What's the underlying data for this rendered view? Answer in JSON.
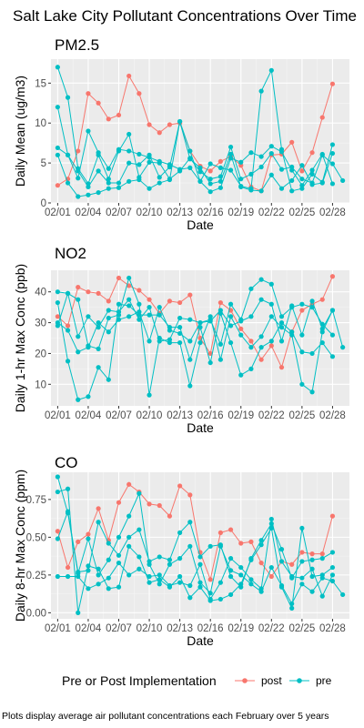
{
  "title": "Salt Lake City Pollutant Concentrations Over Time",
  "caption": "Plots display average air pollutant concentrations each February over 5 years",
  "legend": {
    "title": "Pre or Post Implementation",
    "entries": [
      {
        "label": "post",
        "color": "#F8766D"
      },
      {
        "label": "pre",
        "color": "#00BFC4"
      }
    ]
  },
  "chart_data": [
    {
      "type": "line",
      "title": "PM2.5",
      "xlabel": "Date",
      "ylabel": "Daily Mean (ug/m3)",
      "ylim": [
        0,
        18
      ],
      "xlim": [
        1,
        29
      ],
      "yticks": [
        0,
        5,
        10,
        15
      ],
      "xticks": [
        {
          "day": 1,
          "label": "02/01"
        },
        {
          "day": 4,
          "label": "02/04"
        },
        {
          "day": 7,
          "label": "02/07"
        },
        {
          "day": 10,
          "label": "02/10"
        },
        {
          "day": 13,
          "label": "02/13"
        },
        {
          "day": 16,
          "label": "02/16"
        },
        {
          "day": 19,
          "label": "02/19"
        },
        {
          "day": 22,
          "label": "02/22"
        },
        {
          "day": 25,
          "label": "02/25"
        },
        {
          "day": 28,
          "label": "02/28"
        }
      ],
      "grid": true,
      "series": [
        {
          "group": "post",
          "color": "#F8766D",
          "x": [
            1,
            2,
            3,
            4,
            5,
            6,
            7,
            8,
            9,
            10,
            11,
            12,
            13,
            14,
            15,
            16,
            17,
            18,
            19,
            20,
            21,
            22,
            23,
            24,
            25,
            26,
            27,
            28
          ],
          "y": [
            2.2,
            3.0,
            6.5,
            13.7,
            12.5,
            10.5,
            11.0,
            15.9,
            13.7,
            9.8,
            8.8,
            9.8,
            10.0,
            6.5,
            4.6,
            4.0,
            5.2,
            5.8,
            4.7,
            2.0,
            1.5,
            6.0,
            6.1,
            7.6,
            4.0,
            6.3,
            10.7,
            14.9
          ]
        },
        {
          "group": "pre",
          "color": "#00BFC4",
          "x": [
            1,
            2,
            3,
            4,
            5,
            6,
            7,
            8,
            9,
            10,
            11,
            12,
            13,
            14,
            15,
            16,
            17,
            18,
            19,
            20,
            21,
            22,
            23,
            24,
            25,
            26,
            27,
            28,
            29
          ],
          "y": [
            17.0,
            13.2,
            4.3,
            2.4,
            6.0,
            3.0,
            6.5,
            8.6,
            3.2,
            5.1,
            5.0,
            3.0,
            4.0,
            5.6,
            3.9,
            3.0,
            3.3,
            7.0,
            3.0,
            3.6,
            4.5,
            6.2,
            4.2,
            4.5,
            3.0,
            2.5,
            6.0,
            4.9,
            2.8
          ]
        },
        {
          "group": "pre",
          "color": "#00BFC4",
          "x": [
            1,
            2,
            3,
            4,
            5,
            6,
            7,
            8,
            9,
            10,
            11,
            12,
            13,
            14,
            15,
            16,
            17,
            18,
            19,
            20,
            21,
            22,
            23,
            24,
            25,
            26,
            27,
            28
          ],
          "y": [
            12.0,
            6.0,
            4.0,
            2.0,
            4.0,
            2.5,
            2.5,
            5.0,
            4.8,
            6.0,
            3.2,
            4.5,
            10.2,
            6.5,
            2.7,
            1.4,
            1.9,
            5.6,
            5.1,
            6.3,
            5.8,
            7.1,
            6.4,
            4.1,
            2.2,
            4.1,
            6.1,
            2.4
          ]
        },
        {
          "group": "pre",
          "color": "#00BFC4",
          "x": [
            1,
            2,
            3,
            4,
            5,
            6,
            7,
            8,
            9,
            10,
            11,
            12,
            13,
            14,
            15,
            16,
            17,
            18,
            19,
            20,
            21,
            22,
            23,
            24,
            25,
            26,
            27,
            28
          ],
          "y": [
            6.9,
            6.0,
            3.1,
            9.0,
            6.3,
            4.3,
            6.7,
            6.5,
            6.1,
            5.7,
            5.2,
            4.8,
            4.2,
            4.4,
            2.7,
            4.9,
            4.4,
            4.1,
            2.1,
            1.8,
            14.0,
            16.6,
            6.7,
            1.5,
            1.8,
            3.6,
            2.6,
            7.3
          ]
        },
        {
          "group": "pre",
          "color": "#00BFC4",
          "x": [
            1,
            2,
            3,
            4,
            5,
            6,
            7,
            8,
            9,
            10,
            11,
            12,
            13,
            14,
            15,
            16,
            17,
            18,
            19,
            20,
            21,
            22,
            23,
            24,
            25,
            26,
            27,
            28
          ],
          "y": [
            6.0,
            2.5,
            0.8,
            1.0,
            1.3,
            1.8,
            1.9,
            2.7,
            2.9,
            1.8,
            2.5,
            2.9,
            10.2,
            5.5,
            4.4,
            2.4,
            2.7,
            6.1,
            2.0,
            1.6,
            1.5,
            3.5,
            1.8,
            2.8,
            4.7,
            2.3,
            2.5,
            6.2
          ]
        }
      ]
    },
    {
      "type": "line",
      "title": "NO2",
      "xlabel": "Date",
      "ylabel": "Daily 1-hr Max Conc (ppb)",
      "ylim": [
        3,
        47
      ],
      "xlim": [
        1,
        29
      ],
      "yticks": [
        10,
        20,
        30,
        40
      ],
      "xticks": [
        {
          "day": 1,
          "label": "02/01"
        },
        {
          "day": 4,
          "label": "02/04"
        },
        {
          "day": 7,
          "label": "02/07"
        },
        {
          "day": 10,
          "label": "02/10"
        },
        {
          "day": 13,
          "label": "02/13"
        },
        {
          "day": 16,
          "label": "02/16"
        },
        {
          "day": 19,
          "label": "02/19"
        },
        {
          "day": 22,
          "label": "02/22"
        },
        {
          "day": 25,
          "label": "02/25"
        },
        {
          "day": 28,
          "label": "02/28"
        }
      ],
      "grid": true,
      "series": [
        {
          "group": "post",
          "color": "#F8766D",
          "x": [
            1,
            2,
            3,
            4,
            5,
            6,
            7,
            8,
            9,
            10,
            11,
            12,
            13,
            14,
            15,
            16,
            17,
            18,
            19,
            20,
            21,
            22,
            23,
            24,
            25,
            26,
            27,
            28
          ],
          "y": [
            32.0,
            29.0,
            41.5,
            40.0,
            39.5,
            37.0,
            44.5,
            42.0,
            40.5,
            37.5,
            33.0,
            37.0,
            36.5,
            39.0,
            25.0,
            20.0,
            36.5,
            34.0,
            28.0,
            24.0,
            18.0,
            22.5,
            15.5,
            27.0,
            34.0,
            36.0,
            37.5,
            45.0
          ]
        },
        {
          "group": "pre",
          "color": "#00BFC4",
          "x": [
            1,
            2,
            3,
            4,
            5,
            6,
            7,
            8,
            9,
            10,
            11,
            12,
            13,
            14,
            15,
            16,
            17,
            18,
            19,
            20,
            21,
            22,
            23,
            24,
            25,
            26,
            27,
            28,
            29
          ],
          "y": [
            40.0,
            39.5,
            37.5,
            22.5,
            21.5,
            31.5,
            32.5,
            44.5,
            36.0,
            6.5,
            25.0,
            23.5,
            23.5,
            9.5,
            23.5,
            32.0,
            18.0,
            32.0,
            26.0,
            22.0,
            25.5,
            32.0,
            28.5,
            26.0,
            10.0,
            7.5,
            27.0,
            34.0,
            22.0
          ]
        },
        {
          "group": "pre",
          "color": "#00BFC4",
          "x": [
            1,
            2,
            3,
            4,
            5,
            6,
            7,
            8,
            9,
            10,
            11,
            12,
            13,
            14,
            15,
            16,
            17,
            18,
            19,
            20,
            21,
            22,
            23,
            24,
            25,
            26,
            27,
            28
          ],
          "y": [
            36.5,
            17.5,
            5.0,
            6.0,
            15.5,
            11.5,
            36.0,
            35.5,
            32.5,
            32.5,
            32.5,
            28.5,
            28.5,
            18.0,
            28.5,
            17.0,
            33.0,
            23.5,
            13.0,
            15.0,
            22.0,
            24.0,
            30.0,
            27.0,
            20.5,
            20.0,
            23.5,
            19.0
          ]
        },
        {
          "group": "pre",
          "color": "#00BFC4",
          "x": [
            1,
            2,
            3,
            4,
            5,
            6,
            7,
            8,
            9,
            10,
            11,
            12,
            13,
            14,
            15,
            16,
            17,
            18,
            19,
            20,
            21,
            22,
            23,
            24,
            25,
            26,
            27,
            28
          ],
          "y": [
            30.0,
            27.5,
            20.5,
            22.0,
            30.0,
            27.0,
            31.0,
            32.0,
            33.5,
            24.0,
            35.0,
            27.5,
            26.5,
            24.0,
            30.0,
            31.0,
            23.0,
            36.0,
            31.0,
            41.0,
            44.0,
            42.5,
            32.0,
            35.0,
            36.0,
            35.0,
            29.5,
            26.0
          ]
        },
        {
          "group": "pre",
          "color": "#00BFC4",
          "x": [
            1,
            2,
            3,
            4,
            5,
            6,
            7,
            8,
            9,
            10,
            11,
            12,
            13,
            14,
            15,
            16,
            17,
            18,
            19,
            20,
            21,
            22,
            23,
            24,
            25,
            26,
            27,
            28
          ],
          "y": [
            29.0,
            39.5,
            25.5,
            32.0,
            28.5,
            34.0,
            33.5,
            37.5,
            31.0,
            35.0,
            24.0,
            24.5,
            31.5,
            31.0,
            30.0,
            30.5,
            34.0,
            29.0,
            30.5,
            32.0,
            37.5,
            36.0,
            24.0,
            35.5,
            26.0,
            37.0,
            28.0,
            34.0
          ]
        }
      ]
    },
    {
      "type": "line",
      "title": "CO",
      "xlabel": "Date",
      "ylabel": "Daily 8-hr Max Conc (ppm)",
      "ylim": [
        -0.04,
        0.93
      ],
      "xlim": [
        1,
        29
      ],
      "yticks": [
        0.0,
        0.25,
        0.5,
        0.75
      ],
      "ytick_labels": [
        "0.00",
        "0.25",
        "0.50",
        "0.75"
      ],
      "xticks": [
        {
          "day": 1,
          "label": "02/01"
        },
        {
          "day": 4,
          "label": "02/04"
        },
        {
          "day": 7,
          "label": "02/07"
        },
        {
          "day": 10,
          "label": "02/10"
        },
        {
          "day": 13,
          "label": "02/13"
        },
        {
          "day": 16,
          "label": "02/16"
        },
        {
          "day": 19,
          "label": "02/19"
        },
        {
          "day": 22,
          "label": "02/22"
        },
        {
          "day": 25,
          "label": "02/25"
        },
        {
          "day": 28,
          "label": "02/28"
        }
      ],
      "grid": true,
      "series": [
        {
          "group": "post",
          "color": "#F8766D",
          "x": [
            1,
            2,
            3,
            4,
            5,
            6,
            7,
            8,
            9,
            10,
            11,
            12,
            13,
            14,
            15,
            16,
            17,
            18,
            19,
            20,
            21,
            22,
            23,
            24,
            25,
            26,
            27,
            28
          ],
          "y": [
            0.54,
            0.3,
            0.47,
            0.52,
            0.69,
            0.48,
            0.73,
            0.85,
            0.8,
            0.72,
            0.71,
            0.64,
            0.84,
            0.78,
            0.4,
            0.22,
            0.53,
            0.55,
            0.46,
            0.47,
            0.33,
            0.24,
            0.34,
            0.32,
            0.4,
            0.39,
            0.39,
            0.64
          ]
        },
        {
          "group": "pre",
          "color": "#00BFC4",
          "x": [
            1,
            2,
            3,
            4,
            5,
            6,
            7,
            8,
            9,
            10,
            11,
            12,
            13,
            14,
            15,
            16,
            17,
            18,
            19,
            20,
            21,
            22,
            23,
            24,
            25,
            26,
            27,
            28,
            29
          ],
          "y": [
            0.9,
            0.66,
            0.26,
            0.49,
            0.25,
            0.35,
            0.5,
            0.64,
            0.79,
            0.32,
            0.19,
            0.32,
            0.36,
            0.44,
            0.2,
            0.13,
            0.44,
            0.28,
            0.25,
            0.19,
            0.14,
            0.3,
            0.18,
            0.06,
            0.19,
            0.14,
            0.23,
            0.21,
            0.12
          ]
        },
        {
          "group": "pre",
          "color": "#00BFC4",
          "x": [
            1,
            2,
            3,
            4,
            5,
            6,
            7,
            8,
            9,
            10,
            11,
            12,
            13,
            14,
            15,
            16,
            17,
            18,
            19,
            20,
            21,
            22,
            23,
            24,
            25,
            26,
            27,
            28
          ],
          "y": [
            0.8,
            0.82,
            0.0,
            0.31,
            0.29,
            0.16,
            0.17,
            0.44,
            0.37,
            0.2,
            0.22,
            0.17,
            0.24,
            0.1,
            0.17,
            0.08,
            0.09,
            0.12,
            0.19,
            0.35,
            0.45,
            0.56,
            0.17,
            0.03,
            0.56,
            0.24,
            0.25,
            0.3
          ]
        },
        {
          "group": "pre",
          "color": "#00BFC4",
          "x": [
            1,
            2,
            3,
            4,
            5,
            6,
            7,
            8,
            9,
            10,
            11,
            12,
            13,
            14,
            15,
            16,
            17,
            18,
            19,
            20,
            21,
            22,
            23,
            24,
            25,
            26,
            27,
            28
          ],
          "y": [
            0.49,
            0.67,
            0.27,
            0.28,
            0.6,
            0.46,
            0.38,
            0.5,
            0.55,
            0.34,
            0.37,
            0.35,
            0.53,
            0.6,
            0.37,
            0.44,
            0.45,
            0.24,
            0.17,
            0.36,
            0.48,
            0.59,
            0.42,
            0.23,
            0.34,
            0.35,
            0.36,
            0.4
          ]
        },
        {
          "group": "pre",
          "color": "#00BFC4",
          "x": [
            1,
            2,
            3,
            4,
            5,
            6,
            7,
            8,
            9,
            10,
            11,
            12,
            13,
            14,
            15,
            16,
            17,
            18,
            19,
            20,
            21,
            22,
            23,
            24,
            25,
            26,
            27,
            28
          ],
          "y": [
            0.24,
            0.24,
            0.24,
            0.16,
            0.19,
            0.23,
            0.33,
            0.25,
            0.29,
            0.24,
            0.25,
            0.18,
            0.2,
            0.18,
            0.32,
            0.09,
            0.2,
            0.36,
            0.3,
            0.22,
            0.16,
            0.62,
            0.34,
            0.24,
            0.23,
            0.29,
            0.11,
            0.25
          ]
        }
      ]
    }
  ]
}
